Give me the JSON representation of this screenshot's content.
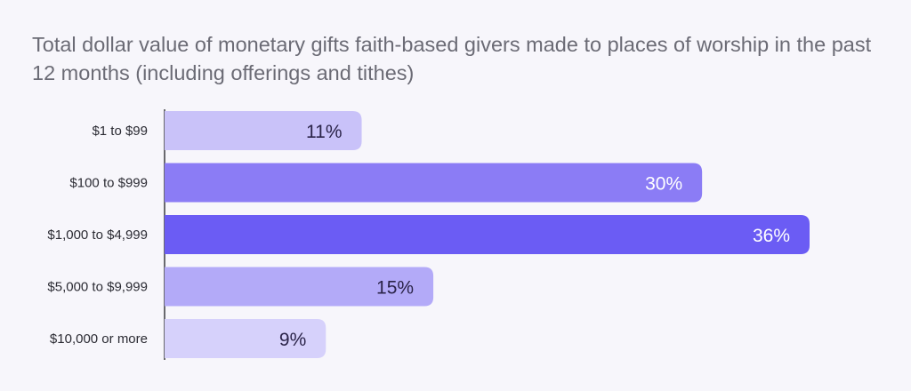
{
  "title": "Total dollar value of monetary gifts faith-based givers made to places of worship in the past 12 months (including offerings and tithes)",
  "chart_data": {
    "type": "bar",
    "orientation": "horizontal",
    "title": "Total dollar value of monetary gifts faith-based givers made to places of worship in the past 12 months (including offerings and tithes)",
    "categories": [
      "$1 to $99",
      "$100 to $999",
      "$1,000 to $4,999",
      "$5,000 to $9,999",
      "$10,000 or more"
    ],
    "values": [
      11,
      30,
      36,
      15,
      9
    ],
    "value_labels": [
      "11%",
      "30%",
      "36%",
      "15%",
      "9%"
    ],
    "unit": "%",
    "xlim": [
      0,
      36
    ],
    "grid": false,
    "legend": "none"
  },
  "colors": {
    "bars": [
      "#c9c2f9",
      "#8b7cf5",
      "#6b5cf4",
      "#b3aaf8",
      "#d6d1fb"
    ],
    "label_text": [
      "#2b2449",
      "#ffffff",
      "#ffffff",
      "#2b2449",
      "#2b2449"
    ],
    "axis": "#3a3a40"
  }
}
